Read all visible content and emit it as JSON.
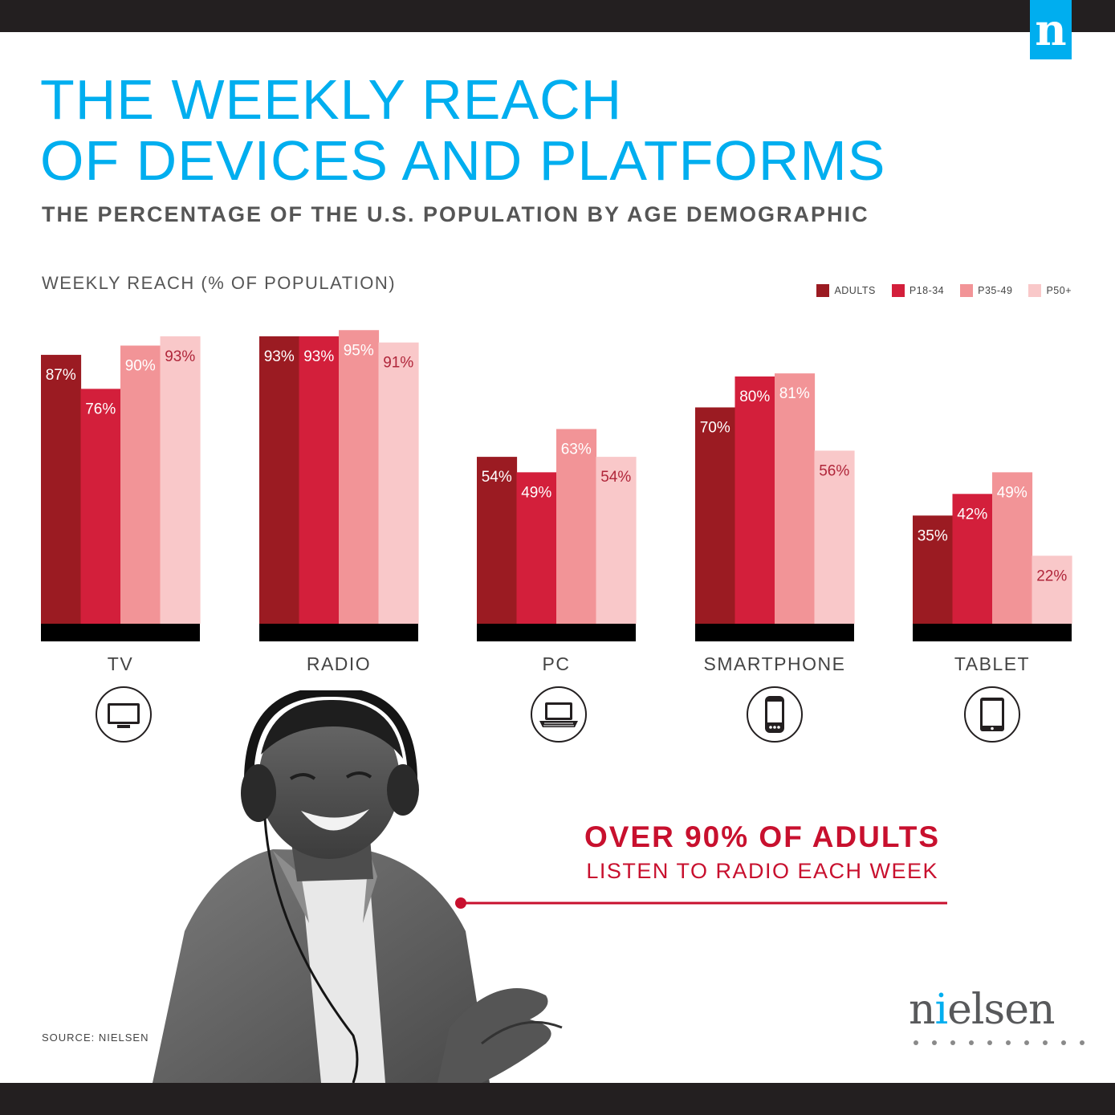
{
  "brand": {
    "badge_letter": "n",
    "logo_first": "n",
    "logo_accent": "i",
    "logo_rest": "elsen",
    "color": "#00aeef"
  },
  "title_lines": [
    "THE WEEKLY REACH",
    "OF DEVICES AND PLATFORMS"
  ],
  "subtitle": "THE PERCENTAGE OF THE U.S. POPULATION BY AGE DEMOGRAPHIC",
  "chart_data": {
    "type": "bar",
    "ylabel": "WEEKLY REACH (% OF POPULATION)",
    "ylim": [
      0,
      100
    ],
    "grid": false,
    "legend": "top-right",
    "value_suffix": "%",
    "categories": [
      "TV",
      "RADIO",
      "PC",
      "SMARTPHONE",
      "TABLET"
    ],
    "series": [
      {
        "name": "ADULTS",
        "color": "#9b1b22",
        "label_color": "#ffffff",
        "values": [
          87,
          93,
          54,
          70,
          35
        ]
      },
      {
        "name": "P18-34",
        "color": "#d31f3b",
        "label_color": "#ffffff",
        "values": [
          76,
          93,
          49,
          80,
          42
        ]
      },
      {
        "name": "P35-49",
        "color": "#f29497",
        "label_color": "#ffffff",
        "values": [
          90,
          95,
          63,
          81,
          49
        ]
      },
      {
        "name": "P50+",
        "color": "#f9c8c9",
        "label_color": "#b0263a",
        "values": [
          93,
          91,
          54,
          56,
          22
        ]
      }
    ],
    "category_icons": [
      "tv-icon",
      "",
      "laptop-icon",
      "smartphone-icon",
      "tablet-icon"
    ]
  },
  "callout": {
    "headline": "OVER 90% OF ADULTS",
    "subline": "LISTEN TO RADIO EACH WEEK",
    "color": "#c8102e"
  },
  "source": "SOURCE: NIELSEN"
}
